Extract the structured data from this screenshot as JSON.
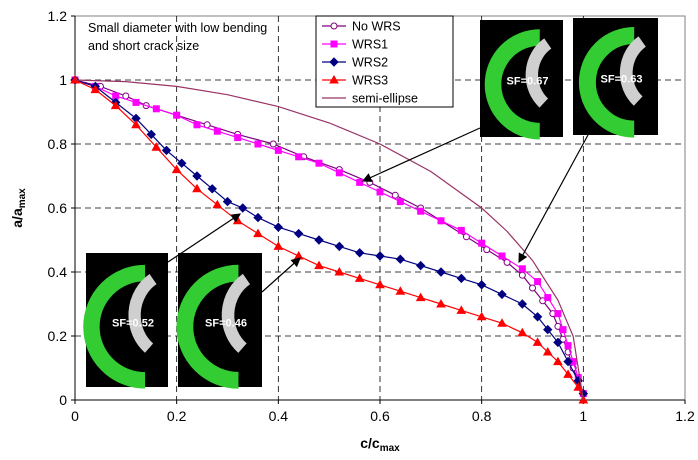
{
  "chart_data": {
    "type": "line",
    "xlabel": "c/c",
    "xlabel_sub": "max",
    "ylabel": "a/a",
    "ylabel_sub": "max",
    "annotation": [
      "Small diameter with low bending",
      "and short crack size"
    ],
    "insets": [
      "SF=0.67",
      "SF=0.63",
      "SF=0.52",
      "SF=0.46"
    ],
    "xlim": [
      0,
      1.2
    ],
    "xticks": [
      0,
      0.2,
      0.4,
      0.6,
      0.8,
      1,
      1.2
    ],
    "ylim": [
      0,
      1.2
    ],
    "yticks": [
      0,
      0.2,
      0.4,
      0.6,
      0.8,
      1,
      1.2
    ],
    "grid": true,
    "legend": "top",
    "series": [
      {
        "name": "No WRS",
        "color": "#800080",
        "marker": "circle-open",
        "x": [
          0,
          0.05,
          0.1,
          0.14,
          0.2,
          0.26,
          0.32,
          0.39,
          0.45,
          0.52,
          0.58,
          0.63,
          0.68,
          0.72,
          0.77,
          0.81,
          0.85,
          0.88,
          0.9,
          0.92,
          0.94,
          0.95,
          0.96,
          0.97,
          0.98,
          0.99,
          1
        ],
        "values": [
          1,
          0.98,
          0.95,
          0.92,
          0.89,
          0.86,
          0.83,
          0.8,
          0.76,
          0.72,
          0.68,
          0.64,
          0.6,
          0.56,
          0.51,
          0.47,
          0.43,
          0.39,
          0.35,
          0.31,
          0.27,
          0.23,
          0.19,
          0.15,
          0.1,
          0.06,
          0.02
        ]
      },
      {
        "name": "WRS1",
        "color": "#ff00ff",
        "marker": "square",
        "x": [
          0,
          0.04,
          0.08,
          0.12,
          0.16,
          0.2,
          0.24,
          0.28,
          0.32,
          0.36,
          0.4,
          0.44,
          0.48,
          0.52,
          0.56,
          0.6,
          0.64,
          0.68,
          0.72,
          0.76,
          0.8,
          0.84,
          0.88,
          0.91,
          0.93,
          0.95,
          0.96,
          0.97,
          0.98,
          0.99,
          1
        ],
        "values": [
          1,
          0.98,
          0.95,
          0.93,
          0.91,
          0.89,
          0.86,
          0.84,
          0.82,
          0.8,
          0.78,
          0.76,
          0.74,
          0.71,
          0.68,
          0.65,
          0.62,
          0.59,
          0.56,
          0.53,
          0.49,
          0.45,
          0.41,
          0.37,
          0.32,
          0.27,
          0.22,
          0.17,
          0.12,
          0.07,
          0.02
        ]
      },
      {
        "name": "WRS2",
        "color": "#000080",
        "marker": "diamond",
        "x": [
          0,
          0.04,
          0.08,
          0.12,
          0.15,
          0.18,
          0.21,
          0.24,
          0.27,
          0.3,
          0.33,
          0.36,
          0.4,
          0.44,
          0.48,
          0.52,
          0.56,
          0.6,
          0.64,
          0.68,
          0.72,
          0.76,
          0.8,
          0.84,
          0.88,
          0.91,
          0.93,
          0.95,
          0.97,
          0.99,
          1
        ],
        "values": [
          1,
          0.98,
          0.93,
          0.88,
          0.83,
          0.78,
          0.74,
          0.7,
          0.66,
          0.62,
          0.6,
          0.57,
          0.54,
          0.52,
          0.5,
          0.48,
          0.46,
          0.45,
          0.44,
          0.42,
          0.4,
          0.38,
          0.36,
          0.33,
          0.3,
          0.26,
          0.22,
          0.18,
          0.12,
          0.06,
          0.02
        ]
      },
      {
        "name": "WRS3",
        "color": "#ff0000",
        "marker": "triangle",
        "x": [
          0,
          0.04,
          0.08,
          0.12,
          0.16,
          0.2,
          0.24,
          0.28,
          0.32,
          0.36,
          0.4,
          0.44,
          0.48,
          0.52,
          0.56,
          0.6,
          0.64,
          0.68,
          0.72,
          0.76,
          0.8,
          0.84,
          0.88,
          0.91,
          0.93,
          0.95,
          0.97,
          0.99,
          1
        ],
        "values": [
          1,
          0.97,
          0.92,
          0.86,
          0.79,
          0.72,
          0.66,
          0.61,
          0.56,
          0.52,
          0.48,
          0.45,
          0.42,
          0.4,
          0.38,
          0.36,
          0.34,
          0.32,
          0.3,
          0.28,
          0.26,
          0.24,
          0.21,
          0.18,
          0.15,
          0.12,
          0.08,
          0.04,
          0
        ]
      },
      {
        "name": "semi-ellipse",
        "color": "#993366",
        "marker": "none",
        "x": [
          0,
          0.1,
          0.2,
          0.3,
          0.4,
          0.5,
          0.6,
          0.7,
          0.8,
          0.85,
          0.9,
          0.95,
          0.98,
          1
        ],
        "values": [
          1,
          0.995,
          0.98,
          0.954,
          0.917,
          0.866,
          0.8,
          0.714,
          0.6,
          0.527,
          0.436,
          0.312,
          0.199,
          0
        ]
      }
    ]
  }
}
